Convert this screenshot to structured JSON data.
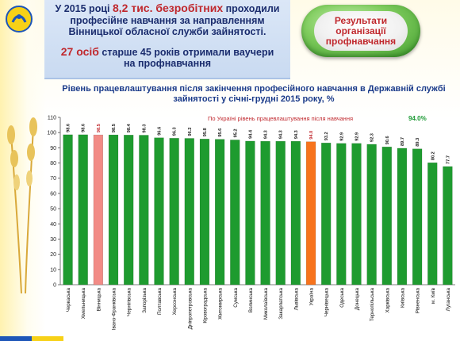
{
  "header": {
    "line1_pre": "У 2015 році",
    "line1_highlight": "8,2 тис. безробітних",
    "line1_post": "проходили",
    "line2": "професійне навчання за направленням",
    "line3": "Вінницької обласної служби зайнятості.",
    "line4_highlight": "27 осіб",
    "line4_post": "старше 45 років отримали ваучери",
    "line5": "на профнавчання"
  },
  "badge": {
    "line1": "Результати",
    "line2": "організації",
    "line3": "профнавчання"
  },
  "colors": {
    "bar_default": "#1e9b2f",
    "bar_highlight": "#f28b86",
    "bar_ukraine": "#f7731c",
    "title": "#1b3b8a",
    "accent_red": "#c0282d"
  },
  "chart_data": {
    "type": "bar",
    "title": "Рівень працевлаштування після закінчення професійного навчання в Державній службі зайнятості у січні-грудні 2015 року, %",
    "annotation": "По Україні рівень працевлаштування після навчання",
    "annotation_value": "94.0%",
    "ylim": [
      0,
      110
    ],
    "yticks": [
      0,
      10,
      20,
      30,
      40,
      50,
      60,
      70,
      80,
      90,
      100,
      110
    ],
    "grid": false,
    "categories": [
      "Черкаська",
      "Хмельницька",
      "Вінницька",
      "Івано-Франківська",
      "Чернігівська",
      "Запорізька",
      "Полтавська",
      "Херсонська",
      "Дніпропетровська",
      "Кіровоградська",
      "Житомирська",
      "Сумська",
      "Волинська",
      "Миколаївська",
      "Закарпатська",
      "Львівська",
      "Україна",
      "Чернівецька",
      "Одеська",
      "Донецька",
      "Тернопільська",
      "Харківська",
      "Київська",
      "Рівненська",
      "м. Київ",
      "Луганська"
    ],
    "values": [
      98.6,
      98.6,
      98.5,
      98.5,
      98.4,
      98.3,
      96.6,
      96.3,
      96.2,
      95.8,
      95.6,
      95.2,
      94.4,
      94.3,
      94.3,
      94.3,
      94.0,
      93.2,
      92.9,
      92.9,
      92.3,
      90.6,
      89.7,
      89.3,
      80.2,
      77.7
    ],
    "value_labels": [
      "98.6",
      "98.6",
      "98.5",
      "98.5",
      "98.4",
      "98.3",
      "96.6",
      "96.3",
      "96.2",
      "95.8",
      "95.6",
      "95.2",
      "94.4",
      "94.3",
      "94.3",
      "94.3",
      "94.0",
      "93.2",
      "92.9",
      "92.9",
      "92.3",
      "90.6",
      "89.7",
      "89.3",
      "80.2",
      "77.7"
    ],
    "highlight_categories": [
      "Вінницька"
    ],
    "reference_category": "Україна"
  }
}
